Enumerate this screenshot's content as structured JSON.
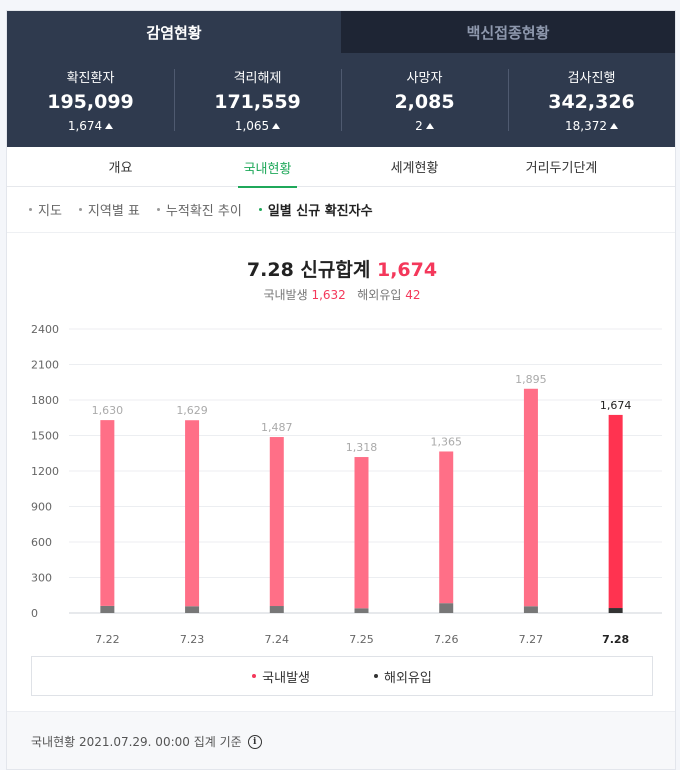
{
  "top_tabs": [
    {
      "label": "감염현황",
      "active": true
    },
    {
      "label": "백신접종현황",
      "active": false
    }
  ],
  "stats": [
    {
      "label": "확진환자",
      "value": "195,099",
      "delta": "1,674"
    },
    {
      "label": "격리해제",
      "value": "171,559",
      "delta": "1,065"
    },
    {
      "label": "사망자",
      "value": "2,085",
      "delta": "2"
    },
    {
      "label": "검사진행",
      "value": "342,326",
      "delta": "18,372"
    }
  ],
  "sub_tabs": [
    {
      "label": "개요",
      "active": false
    },
    {
      "label": "국내현황",
      "active": true
    },
    {
      "label": "세계현황",
      "active": false
    },
    {
      "label": "거리두기단계",
      "active": false
    }
  ],
  "menu": [
    {
      "label": "지도",
      "active": false
    },
    {
      "label": "지역별 표",
      "active": false
    },
    {
      "label": "누적확진 추이",
      "active": false
    },
    {
      "label": "일별 신규 확진자수",
      "active": true
    }
  ],
  "chart_header": {
    "date": "7.28",
    "title_text": "신규합계",
    "total": "1,674",
    "domestic_label": "국내발생",
    "domestic_value": "1,632",
    "overseas_label": "해외유입",
    "overseas_value": "42"
  },
  "chart_data": {
    "type": "bar",
    "stacked": true,
    "categories": [
      "7.22",
      "7.23",
      "7.24",
      "7.25",
      "7.26",
      "7.27",
      "7.28"
    ],
    "totals": [
      1630,
      1629,
      1487,
      1318,
      1365,
      1895,
      1674
    ],
    "total_labels": [
      "1,630",
      "1,629",
      "1,487",
      "1,318",
      "1,365",
      "1,895",
      "1,674"
    ],
    "series": [
      {
        "name": "국내발생",
        "values": [
          1570,
          1572,
          1428,
          1278,
          1282,
          1838,
          1632
        ],
        "color": "#ff6f87"
      },
      {
        "name": "해외유입",
        "values": [
          60,
          57,
          59,
          40,
          83,
          57,
          42
        ],
        "color": "#777777"
      }
    ],
    "highlight_index": 6,
    "highlight_color": "#ff3350",
    "highlight_overseas_color": "#333333",
    "yticks": [
      0,
      300,
      600,
      900,
      1200,
      1500,
      1800,
      2100,
      2400
    ],
    "ylim": [
      0,
      2400
    ],
    "grid": true,
    "legend_position": "bottom"
  },
  "legend": [
    {
      "label": "국내발생",
      "color": "#f4385b"
    },
    {
      "label": "해외유입",
      "color": "#333333"
    }
  ],
  "footer": {
    "text": "국내현황 2021.07.29. 00:00 집계 기준",
    "info_glyph": "i"
  }
}
